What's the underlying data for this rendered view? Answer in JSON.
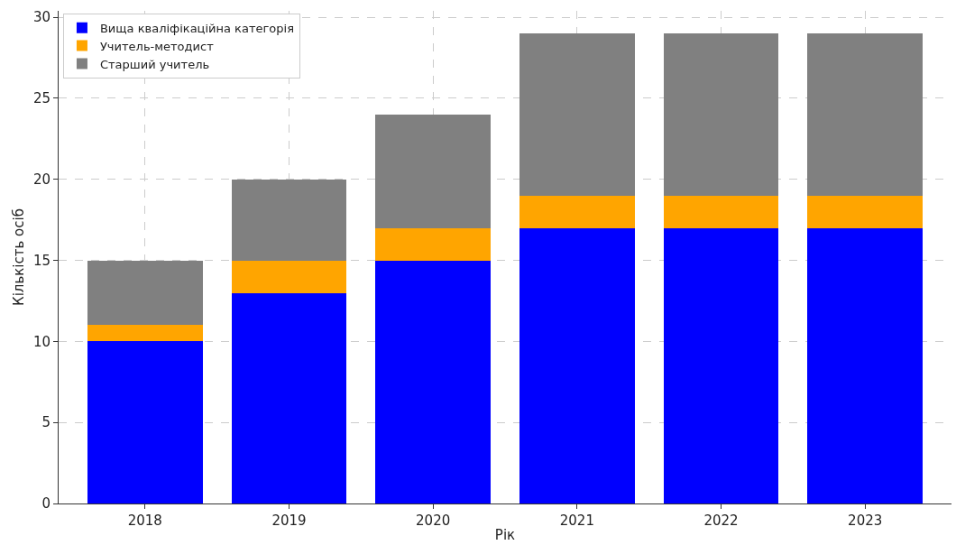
{
  "chart_data": {
    "type": "bar",
    "stacked": true,
    "xlabel": "Рік",
    "ylabel": "Кількість осіб",
    "categories": [
      "2018",
      "2019",
      "2020",
      "2021",
      "2022",
      "2023"
    ],
    "series": [
      {
        "name": "Вища кваліфікаційна категорія",
        "color": "#0000ff",
        "values": [
          10,
          13,
          15,
          17,
          17,
          17
        ]
      },
      {
        "name": "Учитель-методист",
        "color": "#ffa500",
        "values": [
          1,
          2,
          2,
          2,
          2,
          2
        ]
      },
      {
        "name": "Старший учитель",
        "color": "#808080",
        "values": [
          4,
          5,
          7,
          10,
          10,
          10
        ]
      }
    ],
    "ylim": [
      0,
      30.4
    ],
    "yticks": [
      0,
      5,
      10,
      15,
      20,
      25,
      30
    ],
    "grid": true,
    "legend": "top left"
  }
}
